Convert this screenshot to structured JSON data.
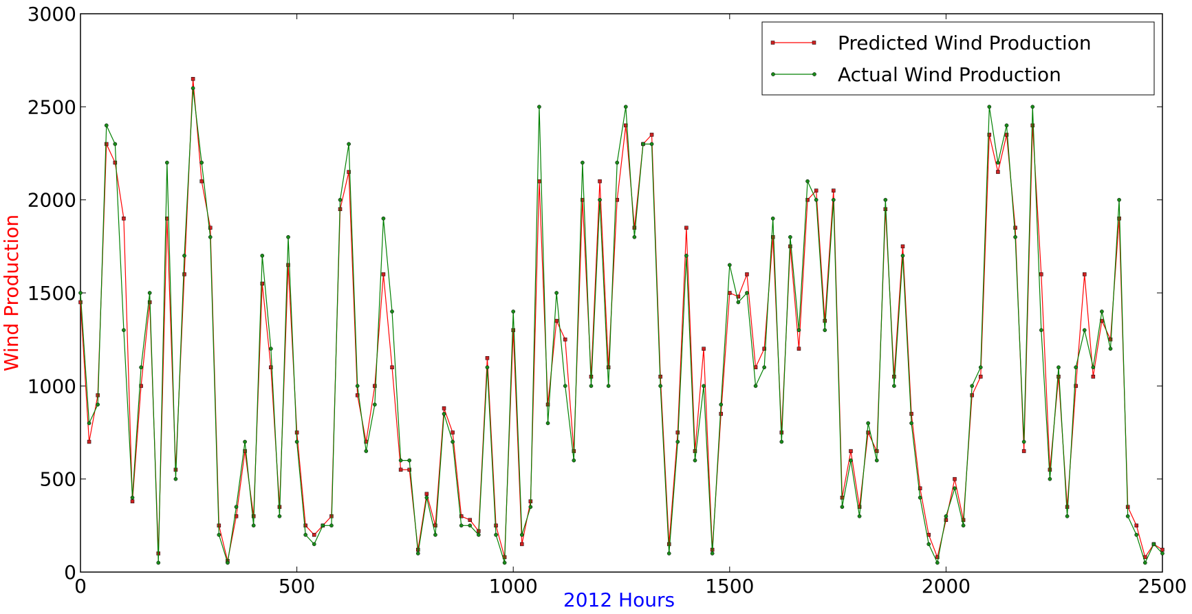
{
  "chart_data": {
    "type": "line",
    "xlabel": "2012 Hours",
    "ylabel": "Wind Production",
    "xlabel_color": "#0000ff",
    "ylabel_color": "#ff0000",
    "x": [
      0,
      20,
      40,
      60,
      80,
      100,
      120,
      140,
      160,
      180,
      200,
      220,
      240,
      260,
      280,
      300,
      320,
      340,
      360,
      380,
      400,
      420,
      440,
      460,
      480,
      500,
      520,
      540,
      560,
      580,
      600,
      620,
      640,
      660,
      680,
      700,
      720,
      740,
      760,
      780,
      800,
      820,
      840,
      860,
      880,
      900,
      920,
      940,
      960,
      980,
      1000,
      1020,
      1040,
      1060,
      1080,
      1100,
      1120,
      1140,
      1160,
      1180,
      1200,
      1220,
      1240,
      1260,
      1280,
      1300,
      1320,
      1340,
      1360,
      1380,
      1400,
      1420,
      1440,
      1460,
      1480,
      1500,
      1520,
      1540,
      1560,
      1580,
      1600,
      1620,
      1640,
      1660,
      1680,
      1700,
      1720,
      1740,
      1760,
      1780,
      1800,
      1820,
      1840,
      1860,
      1880,
      1900,
      1920,
      1940,
      1960,
      1980,
      2000,
      2020,
      2040,
      2060,
      2080,
      2100,
      2120,
      2140,
      2160,
      2180,
      2200,
      2220,
      2240,
      2260,
      2280,
      2300,
      2320,
      2340,
      2360,
      2380,
      2400,
      2420,
      2440,
      2460,
      2480,
      2500
    ],
    "series": [
      {
        "name": "Predicted Wind Production",
        "color": "#ff0000",
        "marker": "square",
        "marker_color": "#cc2222",
        "values": [
          1450,
          700,
          950,
          2300,
          2200,
          1900,
          380,
          1000,
          1450,
          100,
          1900,
          550,
          1600,
          2650,
          2100,
          1850,
          250,
          60,
          300,
          650,
          300,
          1550,
          1100,
          350,
          1650,
          750,
          250,
          200,
          250,
          300,
          1950,
          2150,
          950,
          700,
          1000,
          1600,
          1100,
          550,
          550,
          120,
          420,
          250,
          880,
          750,
          300,
          280,
          220,
          1150,
          250,
          80,
          1300,
          150,
          380,
          2100,
          900,
          1350,
          1250,
          650,
          2000,
          1050,
          2100,
          1100,
          2000,
          2400,
          1850,
          2300,
          2350,
          1050,
          150,
          750,
          1850,
          650,
          1200,
          120,
          850,
          1500,
          1480,
          1600,
          1100,
          1200,
          1800,
          750,
          1750,
          1200,
          2000,
          2050,
          1350,
          2050,
          400,
          650,
          350,
          750,
          650,
          1950,
          1050,
          1750,
          850,
          450,
          200,
          80,
          280,
          500,
          280,
          950,
          1050,
          2350,
          2150,
          2350,
          1850,
          650,
          2400,
          1600,
          550,
          1050,
          350,
          1000,
          1600,
          1050,
          1350,
          1250,
          1900,
          350,
          250,
          80,
          150,
          120
        ]
      },
      {
        "name": "Actual Wind Production",
        "color": "#008000",
        "marker": "circle",
        "marker_color": "#1a8a1a",
        "values": [
          1500,
          800,
          900,
          2400,
          2300,
          1300,
          400,
          1100,
          1500,
          50,
          2200,
          500,
          1700,
          2600,
          2200,
          1800,
          200,
          50,
          350,
          700,
          250,
          1700,
          1200,
          300,
          1800,
          700,
          200,
          150,
          250,
          250,
          2000,
          2300,
          1000,
          650,
          900,
          1900,
          1400,
          600,
          600,
          100,
          400,
          200,
          850,
          700,
          250,
          250,
          200,
          1100,
          200,
          50,
          1400,
          200,
          350,
          2500,
          800,
          1500,
          1000,
          600,
          2200,
          1000,
          2000,
          1000,
          2200,
          2500,
          1800,
          2300,
          2300,
          1000,
          100,
          700,
          1700,
          600,
          1000,
          100,
          900,
          1650,
          1450,
          1500,
          1000,
          1100,
          1900,
          700,
          1800,
          1300,
          2100,
          2000,
          1300,
          2000,
          350,
          600,
          300,
          800,
          600,
          2000,
          1000,
          1700,
          800,
          400,
          150,
          50,
          300,
          450,
          250,
          1000,
          1100,
          2500,
          2200,
          2400,
          1800,
          700,
          2500,
          1300,
          500,
          1100,
          300,
          1100,
          1300,
          1100,
          1400,
          1200,
          2000,
          300,
          200,
          50,
          150,
          100
        ]
      }
    ],
    "xlim": [
      0,
      2500
    ],
    "ylim": [
      0,
      3000
    ],
    "xticks": [
      0,
      500,
      1000,
      1500,
      2000,
      2500
    ],
    "yticks": [
      0,
      500,
      1000,
      1500,
      2000,
      2500,
      3000
    ],
    "legend": "upper right"
  }
}
